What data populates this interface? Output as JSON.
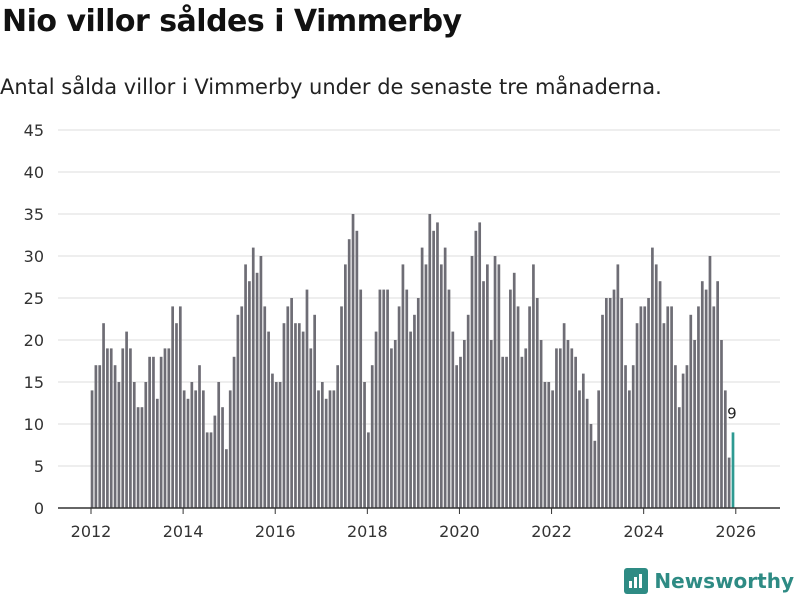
{
  "title": "Nio villor såldes i Vimmerby",
  "subtitle": "Antal sålda villor i Vimmerby under de senaste tre månaderna.",
  "logo": {
    "text": "Newsworthy",
    "icon": "newsworthy-logo-icon"
  },
  "colors": {
    "bar": "#6e6d75",
    "highlight": "#2e9a92",
    "grid": "#dddddd",
    "axis": "#333333",
    "brand": "#2e8b84"
  },
  "chart_data": {
    "type": "bar",
    "title": "Nio villor såldes i Vimmerby",
    "xlabel": "",
    "ylabel": "",
    "ylim": [
      0,
      45
    ],
    "yticks": [
      0,
      5,
      10,
      15,
      20,
      25,
      30,
      35,
      40,
      45
    ],
    "xticks": [
      {
        "label": "2012",
        "value": 2012
      },
      {
        "label": "2014",
        "value": 2014
      },
      {
        "label": "2016",
        "value": 2016
      },
      {
        "label": "2018",
        "value": 2018
      },
      {
        "label": "2020",
        "value": 2020
      },
      {
        "label": "2022",
        "value": 2022
      },
      {
        "label": "2024",
        "value": 2024
      },
      {
        "label": "2026",
        "value": 2026
      }
    ],
    "start": {
      "year": 2012,
      "month": 1
    },
    "frequency": "monthly, rolling three-month sum",
    "values": [
      14,
      17,
      17,
      22,
      19,
      19,
      17,
      15,
      19,
      21,
      19,
      15,
      12,
      12,
      15,
      18,
      18,
      13,
      18,
      19,
      19,
      24,
      22,
      24,
      14,
      13,
      15,
      14,
      17,
      14,
      9,
      9,
      11,
      15,
      12,
      7,
      14,
      18,
      23,
      24,
      29,
      27,
      31,
      28,
      30,
      24,
      21,
      16,
      15,
      15,
      22,
      24,
      25,
      22,
      22,
      21,
      26,
      19,
      23,
      14,
      15,
      13,
      14,
      14,
      17,
      24,
      29,
      32,
      35,
      33,
      26,
      15,
      9,
      17,
      21,
      26,
      26,
      26,
      19,
      20,
      24,
      29,
      26,
      21,
      23,
      25,
      31,
      29,
      35,
      33,
      34,
      29,
      31,
      26,
      21,
      17,
      18,
      20,
      23,
      30,
      33,
      34,
      27,
      29,
      20,
      30,
      29,
      18,
      18,
      26,
      28,
      24,
      18,
      19,
      24,
      29,
      25,
      20,
      15,
      15,
      14,
      19,
      19,
      22,
      20,
      19,
      18,
      14,
      16,
      13,
      10,
      8,
      14,
      23,
      25,
      25,
      26,
      29,
      25,
      17,
      14,
      17,
      22,
      24,
      24,
      25,
      31,
      29,
      27,
      22,
      24,
      24,
      17,
      12,
      16,
      17,
      23,
      20,
      24,
      27,
      26,
      30,
      24,
      27,
      20,
      14,
      6,
      9
    ],
    "highlight": {
      "label": "9",
      "value": 9,
      "index": 167
    }
  }
}
